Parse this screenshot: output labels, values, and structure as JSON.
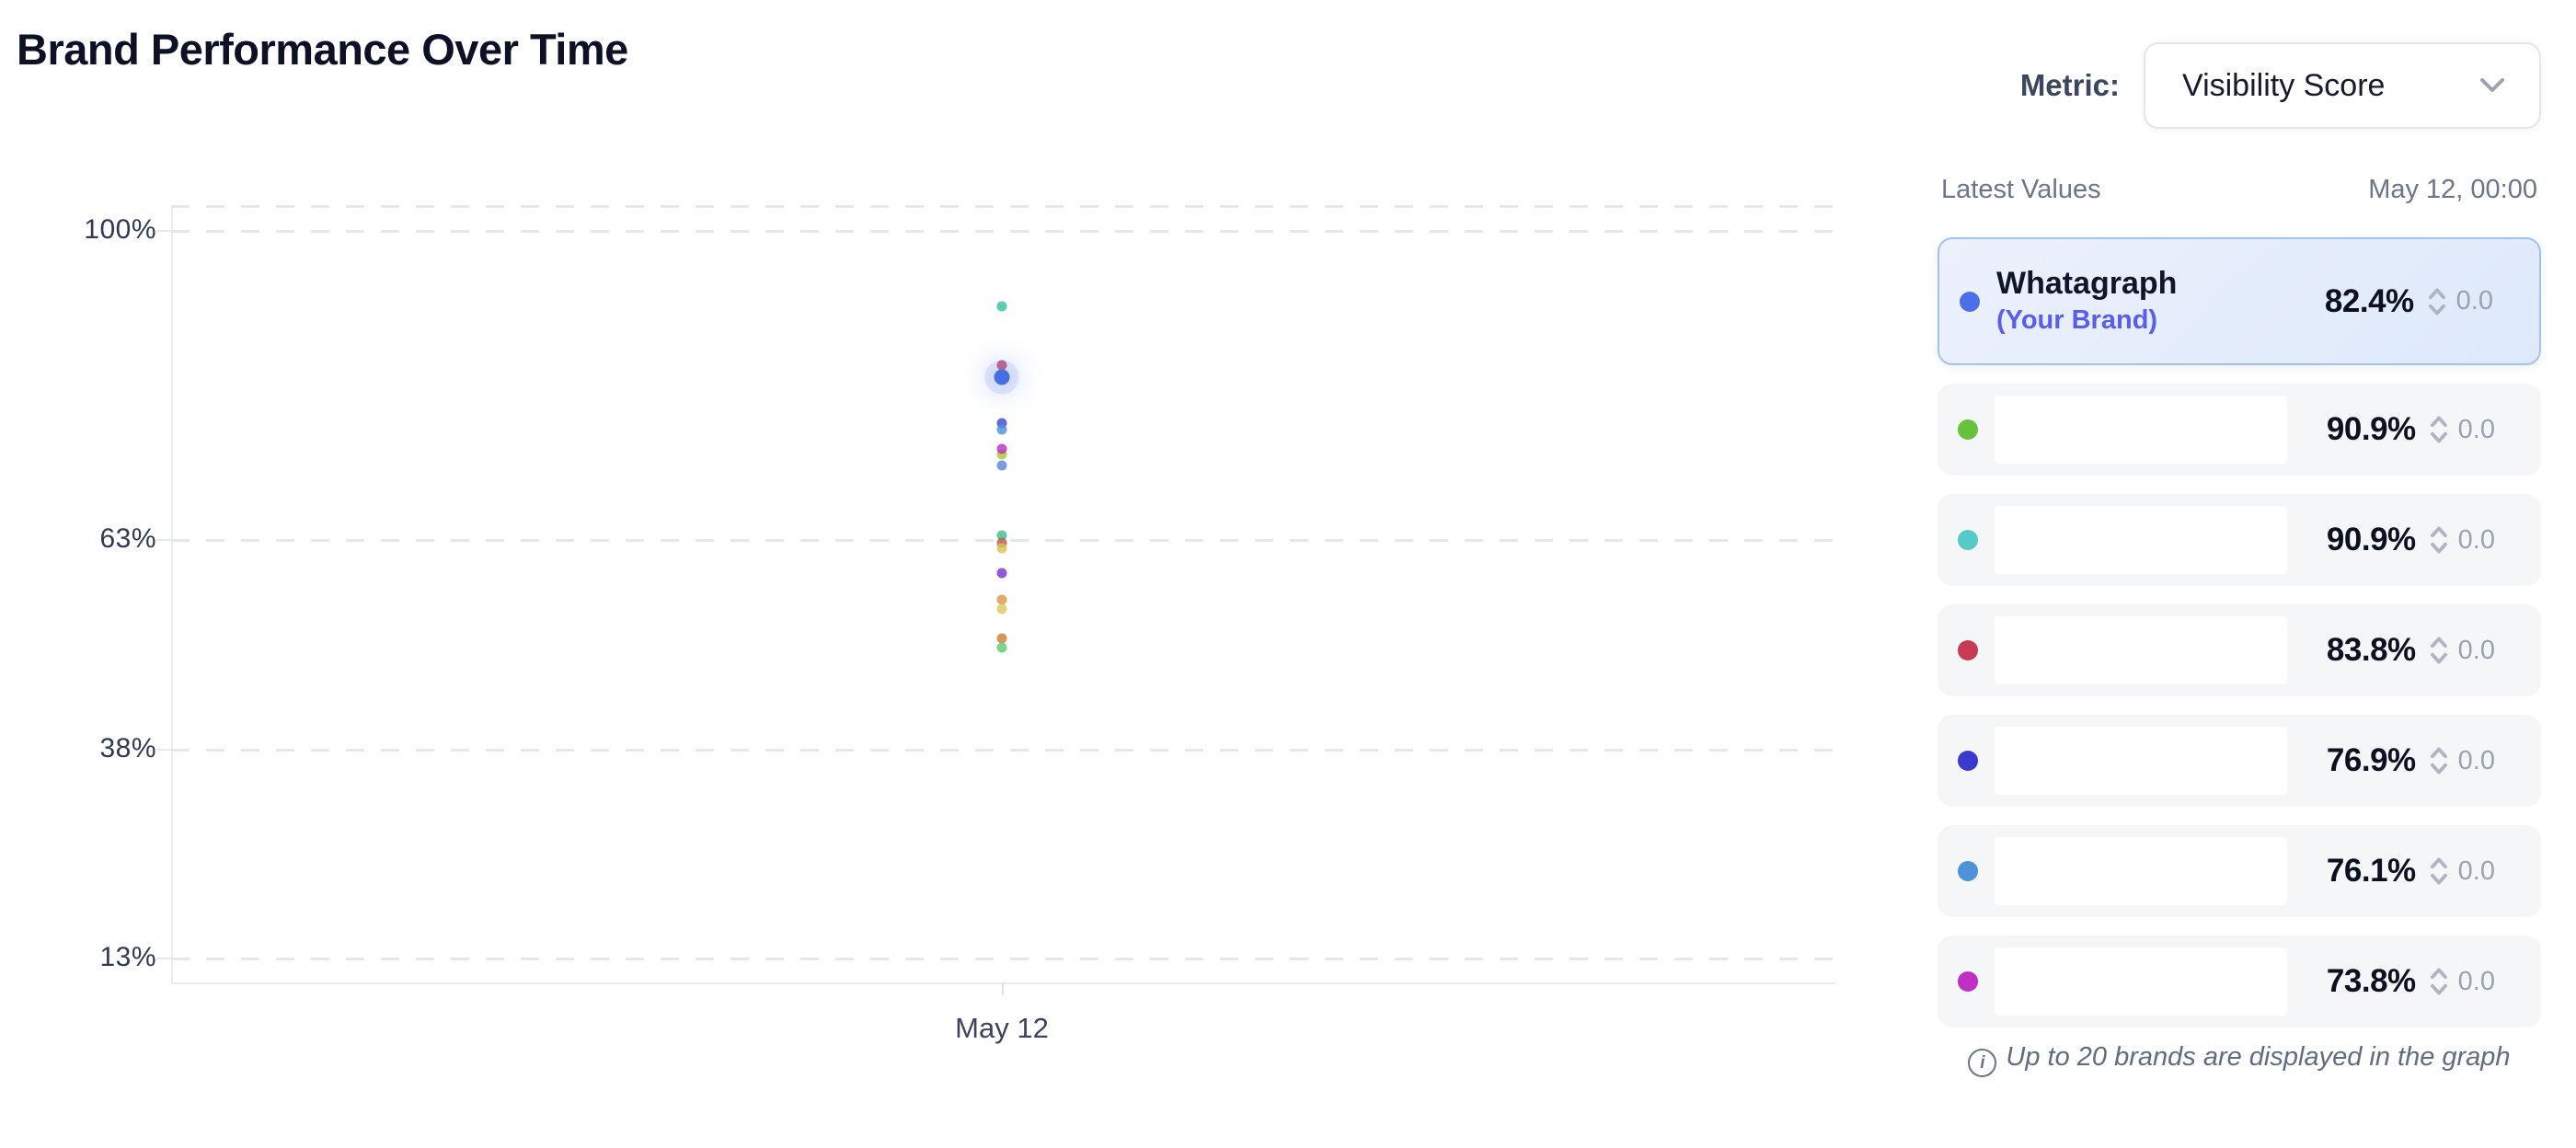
{
  "header": {
    "title": "Brand Performance Over Time",
    "metric_label": "Metric:",
    "metric_dropdown": {
      "selected": "Visibility Score"
    }
  },
  "chart_data": {
    "type": "scatter",
    "title": "Brand Performance Over Time",
    "xlabel": "",
    "ylabel": "",
    "x_categories": [
      "May 12"
    ],
    "y_axis": {
      "ticks": [
        {
          "label": "100%",
          "value": 100
        },
        {
          "label": "63%",
          "value": 63
        },
        {
          "label": "38%",
          "value": 38
        },
        {
          "label": "13%",
          "value": 13
        }
      ],
      "ylim": [
        10,
        103
      ]
    },
    "grid": "dashed-horizontal",
    "points": [
      {
        "x": "May 12",
        "value": 90.9,
        "color": "#63c14e",
        "big": false
      },
      {
        "x": "May 12",
        "value": 90.9,
        "color": "#54cbc8",
        "big": false
      },
      {
        "x": "May 12",
        "value": 83.8,
        "color": "#cc4257",
        "big": false
      },
      {
        "x": "May 12",
        "value": 82.4,
        "color": "#466fe3",
        "big": true
      },
      {
        "x": "May 12",
        "value": 76.9,
        "color": "#4646d6",
        "big": false
      },
      {
        "x": "May 12",
        "value": 76.1,
        "color": "#4d93dc",
        "big": false
      },
      {
        "x": "May 12",
        "value": 73.2,
        "color": "#a9c832",
        "big": false
      },
      {
        "x": "May 12",
        "value": 73.8,
        "color": "#c02fc6",
        "big": false
      },
      {
        "x": "May 12",
        "value": 71.8,
        "color": "#5b86e0",
        "big": false
      },
      {
        "x": "May 12",
        "value": 63.5,
        "color": "#3fbf8f",
        "big": false
      },
      {
        "x": "May 12",
        "value": 62.6,
        "color": "#c05a4a",
        "big": false
      },
      {
        "x": "May 12",
        "value": 61.9,
        "color": "#d9c44f",
        "big": false
      },
      {
        "x": "May 12",
        "value": 59.0,
        "color": "#7a36d1",
        "big": false
      },
      {
        "x": "May 12",
        "value": 55.8,
        "color": "#d99b44",
        "big": false
      },
      {
        "x": "May 12",
        "value": 54.7,
        "color": "#ddc95f",
        "big": false
      },
      {
        "x": "May 12",
        "value": 51.2,
        "color": "#cc8036",
        "big": false
      },
      {
        "x": "May 12",
        "value": 50.1,
        "color": "#5ecb72",
        "big": false
      }
    ]
  },
  "panel": {
    "header_title": "Latest Values",
    "header_timestamp": "May 12, 00:00",
    "rows": [
      {
        "name": "Whatagraph",
        "subtitle": "(Your Brand)",
        "value": "82.4%",
        "delta": "0.0",
        "color": "#4a6fe8",
        "highlighted": true,
        "name_redacted": false
      },
      {
        "name": "",
        "subtitle": "",
        "value": "90.9%",
        "delta": "0.0",
        "color": "#66c23c",
        "highlighted": false,
        "name_redacted": true
      },
      {
        "name": "",
        "subtitle": "",
        "value": "90.9%",
        "delta": "0.0",
        "color": "#54cbc8",
        "highlighted": false,
        "name_redacted": true
      },
      {
        "name": "",
        "subtitle": "",
        "value": "83.8%",
        "delta": "0.0",
        "color": "#c93b55",
        "highlighted": false,
        "name_redacted": true
      },
      {
        "name": "",
        "subtitle": "",
        "value": "76.9%",
        "delta": "0.0",
        "color": "#3a3ad1",
        "highlighted": false,
        "name_redacted": true
      },
      {
        "name": "",
        "subtitle": "",
        "value": "76.1%",
        "delta": "0.0",
        "color": "#4d93dc",
        "highlighted": false,
        "name_redacted": true
      },
      {
        "name": "",
        "subtitle": "",
        "value": "73.8%",
        "delta": "0.0",
        "color": "#bf2fc4",
        "highlighted": false,
        "name_redacted": true
      }
    ],
    "footnote": "Up to 20 brands are displayed in the graph"
  }
}
